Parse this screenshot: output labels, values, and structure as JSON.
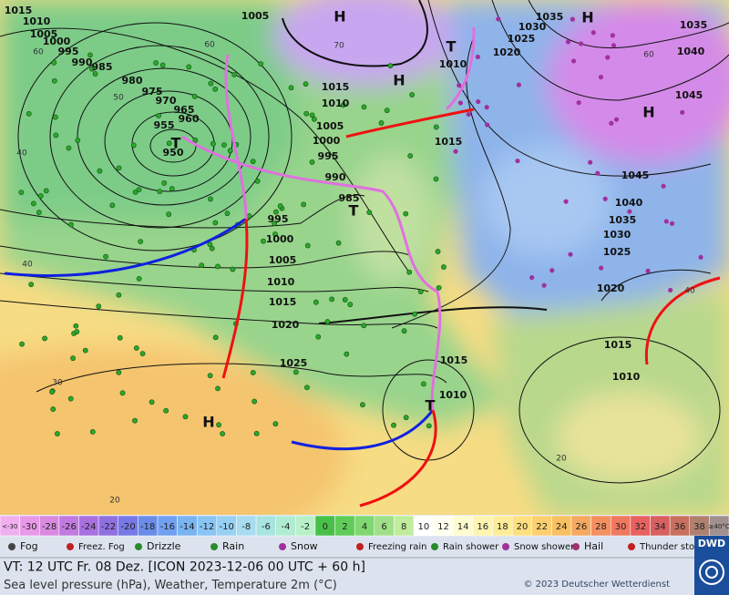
{
  "map": {
    "pressure_centers": [
      "H",
      "H",
      "H",
      "H",
      "H",
      "T",
      "T",
      "T",
      "T"
    ],
    "isobar_labels": [
      "1015",
      "1010",
      "1005",
      "1000",
      "995",
      "990",
      "985",
      "980",
      "975",
      "970",
      "965",
      "960",
      "955",
      "950",
      "1005",
      "1015",
      "1010",
      "1005",
      "1000",
      "995",
      "990",
      "985",
      "995",
      "1000",
      "1005",
      "1010",
      "1015",
      "1020",
      "1025",
      "1015",
      "1010",
      "1015",
      "1010",
      "1020",
      "1025",
      "1030",
      "1035",
      "1035",
      "1040",
      "1045",
      "1045",
      "1040",
      "1035",
      "1030",
      "1025",
      "1020",
      "1015",
      "1010"
    ],
    "temperature_labels": [
      "60",
      "60",
      "70",
      "60",
      "50",
      "40",
      "40",
      "30",
      "20",
      "20",
      "40"
    ]
  },
  "scale": {
    "labels": [
      "<-30",
      "-30",
      "-28",
      "-26",
      "-24",
      "-22",
      "-20",
      "-18",
      "-16",
      "-14",
      "-12",
      "-10",
      "-8",
      "-6",
      "-4",
      "-2",
      "0",
      "2",
      "4",
      "6",
      "8",
      "10",
      "12",
      "14",
      "16",
      "18",
      "20",
      "22",
      "24",
      "26",
      "28",
      "30",
      "32",
      "34",
      "36",
      "38",
      "≥40°C"
    ]
  },
  "legend": {
    "items": [
      "Fog",
      "Freez. Fog",
      "Drizzle",
      "Rain",
      "Snow",
      "Freezing rain",
      "Rain shower",
      "Snow shower",
      "Hail",
      "Thunder storm"
    ]
  },
  "footer": {
    "valid_time": "VT: 12 UTC Fr.  08 Dez. [ICON 2023-12-06  00 UTC + 60 h]",
    "description": "Sea level pressure (hPa), Weather, Temperature 2m (°C)",
    "copyright": "© 2023 Deutscher Wetterdienst",
    "logo": "DWD"
  }
}
